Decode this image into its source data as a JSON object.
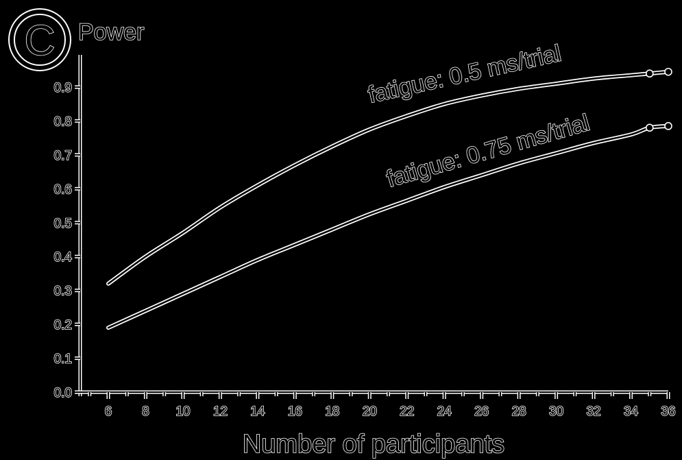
{
  "panel": {
    "letter": "C",
    "title": "Power"
  },
  "chart_data": {
    "type": "line",
    "title": "Power",
    "xlabel": "Number of participants",
    "ylabel": "",
    "xlim": [
      4.5,
      36
    ],
    "ylim": [
      0,
      1.0
    ],
    "x_ticks": [
      6,
      8,
      10,
      12,
      14,
      16,
      18,
      20,
      22,
      24,
      26,
      28,
      30,
      32,
      34,
      36
    ],
    "y_ticks": [
      0.0,
      0.1,
      0.2,
      0.3,
      0.4,
      0.5,
      0.6,
      0.7,
      0.8,
      0.9
    ],
    "y_tick_labels": [
      "0.0",
      "0.1",
      "0.2",
      "0.3",
      "0.4",
      "0.5",
      "0.6",
      "0.7",
      "0.8",
      "0.9"
    ],
    "grid": false,
    "legend": "none",
    "series": [
      {
        "name": "fatigue: 0.5 ms/trial",
        "x": [
          6,
          8,
          10,
          12,
          14,
          16,
          18,
          20,
          22,
          24,
          26,
          28,
          30,
          32,
          34,
          35,
          36
        ],
        "y": [
          0.32,
          0.4,
          0.47,
          0.545,
          0.61,
          0.67,
          0.725,
          0.775,
          0.815,
          0.85,
          0.875,
          0.895,
          0.91,
          0.925,
          0.935,
          0.94,
          0.945
        ]
      },
      {
        "name": "fatigue: 0.75 ms/trial",
        "x": [
          6,
          8,
          10,
          12,
          14,
          16,
          18,
          20,
          22,
          24,
          26,
          28,
          30,
          32,
          34,
          35,
          36
        ],
        "y": [
          0.19,
          0.24,
          0.29,
          0.34,
          0.39,
          0.435,
          0.48,
          0.525,
          0.565,
          0.605,
          0.64,
          0.675,
          0.705,
          0.735,
          0.76,
          0.78,
          0.785
        ]
      }
    ],
    "endpoint_markers_x": [
      35,
      36
    ]
  }
}
